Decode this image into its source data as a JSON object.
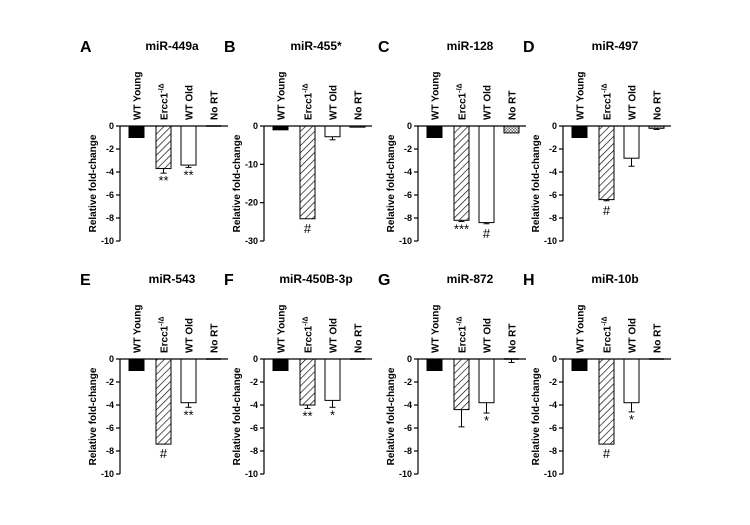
{
  "chart_data": [
    {
      "type": "bar",
      "letter": "A",
      "title": "miR-449a",
      "categories": [
        "WT Young",
        "Ercc1-/Δ",
        "WT Old",
        "No RT"
      ],
      "values": [
        -1,
        -3.7,
        -3.4,
        0
      ],
      "errors": [
        0,
        0.4,
        0.2,
        0
      ],
      "significance": [
        "",
        "**",
        "**",
        ""
      ],
      "ylabel": "Relative fold-change",
      "ylim": [
        -10,
        0
      ],
      "yticks": [
        0,
        -2,
        -4,
        -6,
        -8,
        -10
      ],
      "yticklabels": [
        "0",
        "-2",
        "-4",
        "-6",
        "-8",
        "-10"
      ]
    },
    {
      "type": "bar",
      "letter": "B",
      "title": "miR-455*",
      "categories": [
        "WT Young",
        "Ercc1-/Δ",
        "WT Old",
        "No RT"
      ],
      "values": [
        -1,
        -24.2,
        -2.8,
        -0.3
      ],
      "errors": [
        0,
        0,
        0.8,
        0
      ],
      "significance": [
        "",
        "#",
        "",
        ""
      ],
      "ylabel": "Relative fold-change",
      "ylim": [
        -30,
        0
      ],
      "yticks": [
        0,
        -10,
        -20,
        -30
      ],
      "yticklabels": [
        "0",
        "-10",
        "-20",
        "-30"
      ]
    },
    {
      "type": "bar",
      "letter": "C",
      "title": "miR-128",
      "categories": [
        "WT Young",
        "Ercc1-/Δ",
        "WT Old",
        "No RT"
      ],
      "values": [
        -1,
        -8.2,
        -8.4,
        -0.6
      ],
      "errors": [
        0,
        0.1,
        0.1,
        0
      ],
      "significance": [
        "",
        "***",
        "#",
        ""
      ],
      "ylabel": "Relative fold-change",
      "ylim": [
        -10,
        0
      ],
      "yticks": [
        0,
        -2,
        -4,
        -6,
        -8,
        -10
      ],
      "yticklabels": [
        "0",
        "-2",
        "-4",
        "-6",
        "-8",
        "-10"
      ]
    },
    {
      "type": "bar",
      "letter": "D",
      "title": "miR-497",
      "categories": [
        "WT Young",
        "Ercc1-/Δ",
        "WT Old",
        "No RT"
      ],
      "values": [
        -1,
        -6.4,
        -2.8,
        -0.2
      ],
      "errors": [
        0,
        0.1,
        0.7,
        0.1
      ],
      "significance": [
        "",
        "#",
        "",
        ""
      ],
      "ylabel": "Relative fold-change",
      "ylim": [
        -10,
        0
      ],
      "yticks": [
        0,
        -2,
        -4,
        -6,
        -8,
        -10
      ],
      "yticklabels": [
        "0",
        "-2",
        "-4",
        "-6",
        "-8",
        "-10"
      ]
    },
    {
      "type": "bar",
      "letter": "E",
      "title": "miR-543",
      "categories": [
        "WT Young",
        "Ercc1-/Δ",
        "WT Old",
        "No RT"
      ],
      "values": [
        -1,
        -7.4,
        -3.8,
        0
      ],
      "errors": [
        0,
        0,
        0.4,
        0
      ],
      "significance": [
        "",
        "#",
        "**",
        ""
      ],
      "ylabel": "Relative fold-change",
      "ylim": [
        -10,
        0
      ],
      "yticks": [
        0,
        -2,
        -4,
        -6,
        -8,
        -10
      ],
      "yticklabels": [
        "0",
        "-2",
        "-4",
        "-6",
        "-8",
        "-10"
      ]
    },
    {
      "type": "bar",
      "letter": "F",
      "title": "miR-450B-3p",
      "categories": [
        "WT Young",
        "Ercc1-/Δ",
        "WT Old",
        "No RT"
      ],
      "values": [
        -1,
        -4,
        -3.6,
        0
      ],
      "errors": [
        0,
        0.3,
        0.6,
        0
      ],
      "significance": [
        "",
        "**",
        "*",
        ""
      ],
      "ylabel": "Relative fold-change",
      "ylim": [
        -10,
        0
      ],
      "yticks": [
        0,
        -2,
        -4,
        -6,
        -8,
        -10
      ],
      "yticklabels": [
        "0",
        "-2",
        "-4",
        "-6",
        "-8",
        "-10"
      ]
    },
    {
      "type": "bar",
      "letter": "G",
      "title": "miR-872",
      "categories": [
        "WT Young",
        "Ercc1-/Δ",
        "WT Old",
        "No RT"
      ],
      "values": [
        -1,
        -4.4,
        -3.8,
        0
      ],
      "errors": [
        0,
        1.5,
        0.9,
        0.3
      ],
      "significance": [
        "",
        "",
        "*",
        ""
      ],
      "ylabel": "Relative fold-change",
      "ylim": [
        -10,
        0
      ],
      "yticks": [
        0,
        -2,
        -4,
        -6,
        -8,
        -10
      ],
      "yticklabels": [
        "0",
        "-2",
        "-4",
        "-6",
        "-8",
        "-10"
      ]
    },
    {
      "type": "bar",
      "letter": "H",
      "title": "miR-10b",
      "categories": [
        "WT Young",
        "Ercc1-/Δ",
        "WT Old",
        "No RT"
      ],
      "values": [
        -1,
        -7.4,
        -3.8,
        0
      ],
      "errors": [
        0,
        0,
        0.8,
        0
      ],
      "significance": [
        "",
        "#",
        "*",
        ""
      ],
      "ylabel": "Relative fold-change",
      "ylim": [
        -10,
        0
      ],
      "yticks": [
        0,
        -2,
        -4,
        -6,
        -8,
        -10
      ],
      "yticklabels": [
        "0",
        "-2",
        "-4",
        "-6",
        "-8",
        "-10"
      ]
    }
  ],
  "colors": {
    "wt_young": "#000000",
    "ercc1": "#ffffff",
    "wt_old": "#ffffff",
    "no_rt": "#bfbfbf",
    "stroke": "#000000"
  }
}
